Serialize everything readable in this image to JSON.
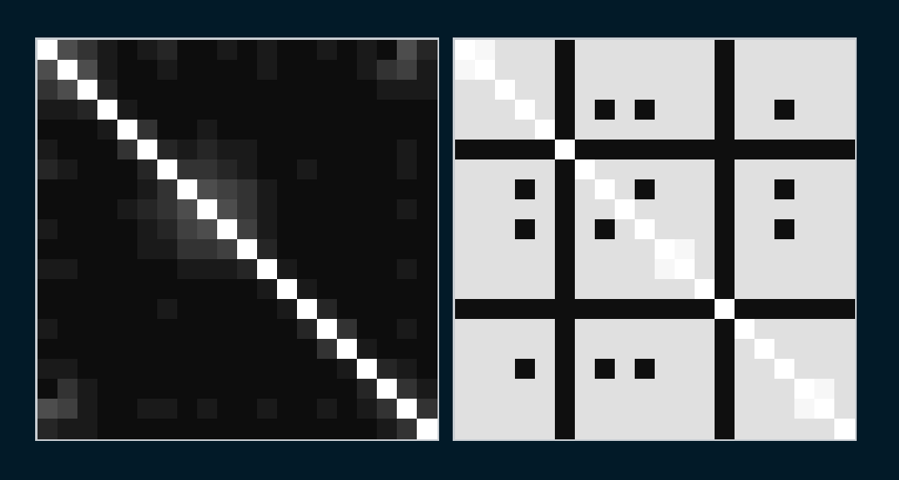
{
  "chart_data": [
    {
      "type": "heatmap",
      "tick_labels": false,
      "zlim": [
        0,
        1
      ],
      "cells": [
        [
          1,
          0.3,
          0.2,
          0.1,
          0.05,
          0.1,
          0.15,
          0.05,
          0.05,
          0.1,
          0.05,
          0.1,
          0.05,
          0.05,
          0.1,
          0.05,
          0.1,
          0.05,
          0.3,
          0.15
        ],
        [
          0.3,
          1,
          0.3,
          0.1,
          0.05,
          0.05,
          0.1,
          0.05,
          0.05,
          0.05,
          0.05,
          0.1,
          0.05,
          0.05,
          0.05,
          0.05,
          0.1,
          0.2,
          0.25,
          0.1
        ],
        [
          0.2,
          0.3,
          1,
          0.15,
          0.05,
          0.05,
          0.05,
          0.05,
          0.05,
          0.05,
          0.05,
          0.05,
          0.05,
          0.05,
          0.05,
          0.05,
          0.05,
          0.1,
          0.1,
          0.1
        ],
        [
          0.1,
          0.1,
          0.15,
          1,
          0.1,
          0.05,
          0.05,
          0.05,
          0.05,
          0.05,
          0.05,
          0.05,
          0.05,
          0.05,
          0.05,
          0.05,
          0.05,
          0.05,
          0.05,
          0.05
        ],
        [
          0.05,
          0.05,
          0.05,
          0.1,
          1,
          0.2,
          0.05,
          0.05,
          0.1,
          0.05,
          0.05,
          0.05,
          0.05,
          0.05,
          0.05,
          0.05,
          0.05,
          0.05,
          0.05,
          0.05
        ],
        [
          0.1,
          0.05,
          0.05,
          0.05,
          0.2,
          1,
          0.15,
          0.1,
          0.15,
          0.1,
          0.1,
          0.05,
          0.05,
          0.05,
          0.05,
          0.05,
          0.05,
          0.05,
          0.1,
          0.05
        ],
        [
          0.15,
          0.1,
          0.05,
          0.05,
          0.05,
          0.15,
          1,
          0.2,
          0.2,
          0.15,
          0.1,
          0.05,
          0.05,
          0.1,
          0.05,
          0.05,
          0.05,
          0.05,
          0.1,
          0.05
        ],
        [
          0.05,
          0.05,
          0.05,
          0.05,
          0.05,
          0.1,
          0.2,
          1,
          0.3,
          0.25,
          0.2,
          0.1,
          0.05,
          0.05,
          0.05,
          0.05,
          0.05,
          0.05,
          0.05,
          0.05
        ],
        [
          0.05,
          0.05,
          0.05,
          0.05,
          0.1,
          0.15,
          0.2,
          0.3,
          1,
          0.3,
          0.2,
          0.1,
          0.05,
          0.05,
          0.05,
          0.05,
          0.05,
          0.05,
          0.1,
          0.05
        ],
        [
          0.1,
          0.05,
          0.05,
          0.05,
          0.05,
          0.1,
          0.15,
          0.25,
          0.3,
          1,
          0.25,
          0.1,
          0.05,
          0.05,
          0.05,
          0.05,
          0.05,
          0.05,
          0.05,
          0.05
        ],
        [
          0.05,
          0.05,
          0.05,
          0.05,
          0.05,
          0.1,
          0.1,
          0.2,
          0.2,
          0.25,
          1,
          0.15,
          0.05,
          0.05,
          0.05,
          0.05,
          0.05,
          0.05,
          0.05,
          0.05
        ],
        [
          0.1,
          0.1,
          0.05,
          0.05,
          0.05,
          0.05,
          0.05,
          0.1,
          0.1,
          0.1,
          0.15,
          1,
          0.1,
          0.05,
          0.05,
          0.05,
          0.05,
          0.05,
          0.1,
          0.05
        ],
        [
          0.05,
          0.05,
          0.05,
          0.05,
          0.05,
          0.05,
          0.05,
          0.05,
          0.05,
          0.05,
          0.05,
          0.1,
          1,
          0.1,
          0.05,
          0.05,
          0.05,
          0.05,
          0.05,
          0.05
        ],
        [
          0.05,
          0.05,
          0.05,
          0.05,
          0.05,
          0.05,
          0.1,
          0.05,
          0.05,
          0.05,
          0.05,
          0.05,
          0.1,
          1,
          0.15,
          0.05,
          0.05,
          0.05,
          0.05,
          0.05
        ],
        [
          0.1,
          0.05,
          0.05,
          0.05,
          0.05,
          0.05,
          0.05,
          0.05,
          0.05,
          0.05,
          0.05,
          0.05,
          0.05,
          0.15,
          1,
          0.2,
          0.05,
          0.05,
          0.1,
          0.05
        ],
        [
          0.05,
          0.05,
          0.05,
          0.05,
          0.05,
          0.05,
          0.05,
          0.05,
          0.05,
          0.05,
          0.05,
          0.05,
          0.05,
          0.05,
          0.2,
          1,
          0.1,
          0.05,
          0.05,
          0.05
        ],
        [
          0.1,
          0.1,
          0.05,
          0.05,
          0.05,
          0.05,
          0.05,
          0.05,
          0.05,
          0.05,
          0.05,
          0.05,
          0.05,
          0.05,
          0.05,
          0.1,
          1,
          0.15,
          0.1,
          0.05
        ],
        [
          0.05,
          0.2,
          0.1,
          0.05,
          0.05,
          0.05,
          0.05,
          0.05,
          0.05,
          0.05,
          0.05,
          0.05,
          0.05,
          0.05,
          0.05,
          0.05,
          0.15,
          1,
          0.2,
          0.1
        ],
        [
          0.3,
          0.25,
          0.1,
          0.05,
          0.05,
          0.1,
          0.1,
          0.05,
          0.1,
          0.05,
          0.05,
          0.1,
          0.05,
          0.05,
          0.1,
          0.05,
          0.1,
          0.2,
          1,
          0.2
        ],
        [
          0.15,
          0.1,
          0.1,
          0.05,
          0.05,
          0.05,
          0.05,
          0.05,
          0.05,
          0.05,
          0.05,
          0.05,
          0.05,
          0.05,
          0.05,
          0.05,
          0.05,
          0.1,
          0.2,
          1
        ]
      ]
    },
    {
      "type": "heatmap",
      "tick_labels": false,
      "zlim": [
        0,
        1
      ],
      "cells": [
        [
          1,
          0.97,
          0.88,
          0.88,
          0.88,
          0.06,
          0.88,
          0.88,
          0.88,
          0.88,
          0.88,
          0.88,
          0.88,
          0.06,
          0.88,
          0.88,
          0.88,
          0.88,
          0.88,
          0.88
        ],
        [
          0.97,
          1,
          0.88,
          0.88,
          0.88,
          0.06,
          0.88,
          0.88,
          0.88,
          0.88,
          0.88,
          0.88,
          0.88,
          0.06,
          0.88,
          0.88,
          0.88,
          0.88,
          0.88,
          0.88
        ],
        [
          0.88,
          0.88,
          1,
          0.88,
          0.88,
          0.06,
          0.88,
          0.88,
          0.88,
          0.88,
          0.88,
          0.88,
          0.88,
          0.06,
          0.88,
          0.88,
          0.88,
          0.88,
          0.88,
          0.88
        ],
        [
          0.88,
          0.88,
          0.88,
          1,
          0.88,
          0.06,
          0.88,
          0.06,
          0.88,
          0.06,
          0.88,
          0.88,
          0.88,
          0.06,
          0.88,
          0.88,
          0.06,
          0.88,
          0.88,
          0.88
        ],
        [
          0.88,
          0.88,
          0.88,
          0.88,
          1,
          0.06,
          0.88,
          0.88,
          0.88,
          0.88,
          0.88,
          0.88,
          0.88,
          0.06,
          0.88,
          0.88,
          0.88,
          0.88,
          0.88,
          0.88
        ],
        [
          0.06,
          0.06,
          0.06,
          0.06,
          0.06,
          1,
          0.06,
          0.06,
          0.06,
          0.06,
          0.06,
          0.06,
          0.06,
          0.06,
          0.06,
          0.06,
          0.06,
          0.06,
          0.06,
          0.06
        ],
        [
          0.88,
          0.88,
          0.88,
          0.88,
          0.88,
          0.06,
          1,
          0.88,
          0.88,
          0.88,
          0.88,
          0.88,
          0.88,
          0.06,
          0.88,
          0.88,
          0.88,
          0.88,
          0.88,
          0.88
        ],
        [
          0.88,
          0.88,
          0.88,
          0.06,
          0.88,
          0.06,
          0.88,
          1,
          0.88,
          0.06,
          0.88,
          0.88,
          0.88,
          0.06,
          0.88,
          0.88,
          0.06,
          0.88,
          0.88,
          0.88
        ],
        [
          0.88,
          0.88,
          0.88,
          0.88,
          0.88,
          0.06,
          0.88,
          0.88,
          1,
          0.88,
          0.88,
          0.88,
          0.88,
          0.06,
          0.88,
          0.88,
          0.88,
          0.88,
          0.88,
          0.88
        ],
        [
          0.88,
          0.88,
          0.88,
          0.06,
          0.88,
          0.06,
          0.88,
          0.06,
          0.88,
          1,
          0.88,
          0.88,
          0.88,
          0.06,
          0.88,
          0.88,
          0.06,
          0.88,
          0.88,
          0.88
        ],
        [
          0.88,
          0.88,
          0.88,
          0.88,
          0.88,
          0.06,
          0.88,
          0.88,
          0.88,
          0.88,
          1,
          0.97,
          0.88,
          0.06,
          0.88,
          0.88,
          0.88,
          0.88,
          0.88,
          0.88
        ],
        [
          0.88,
          0.88,
          0.88,
          0.88,
          0.88,
          0.06,
          0.88,
          0.88,
          0.88,
          0.88,
          0.97,
          1,
          0.88,
          0.06,
          0.88,
          0.88,
          0.88,
          0.88,
          0.88,
          0.88
        ],
        [
          0.88,
          0.88,
          0.88,
          0.88,
          0.88,
          0.06,
          0.88,
          0.88,
          0.88,
          0.88,
          0.88,
          0.88,
          1,
          0.06,
          0.88,
          0.88,
          0.88,
          0.88,
          0.88,
          0.88
        ],
        [
          0.06,
          0.06,
          0.06,
          0.06,
          0.06,
          0.06,
          0.06,
          0.06,
          0.06,
          0.06,
          0.06,
          0.06,
          0.06,
          1,
          0.06,
          0.06,
          0.06,
          0.06,
          0.06,
          0.06
        ],
        [
          0.88,
          0.88,
          0.88,
          0.88,
          0.88,
          0.06,
          0.88,
          0.88,
          0.88,
          0.88,
          0.88,
          0.88,
          0.88,
          0.06,
          1,
          0.88,
          0.88,
          0.88,
          0.88,
          0.88
        ],
        [
          0.88,
          0.88,
          0.88,
          0.88,
          0.88,
          0.06,
          0.88,
          0.88,
          0.88,
          0.88,
          0.88,
          0.88,
          0.88,
          0.06,
          0.88,
          1,
          0.88,
          0.88,
          0.88,
          0.88
        ],
        [
          0.88,
          0.88,
          0.88,
          0.06,
          0.88,
          0.06,
          0.88,
          0.06,
          0.88,
          0.06,
          0.88,
          0.88,
          0.88,
          0.06,
          0.88,
          0.88,
          1,
          0.88,
          0.88,
          0.88
        ],
        [
          0.88,
          0.88,
          0.88,
          0.88,
          0.88,
          0.06,
          0.88,
          0.88,
          0.88,
          0.88,
          0.88,
          0.88,
          0.88,
          0.06,
          0.88,
          0.88,
          0.88,
          1,
          0.97,
          0.88
        ],
        [
          0.88,
          0.88,
          0.88,
          0.88,
          0.88,
          0.06,
          0.88,
          0.88,
          0.88,
          0.88,
          0.88,
          0.88,
          0.88,
          0.06,
          0.88,
          0.88,
          0.88,
          0.97,
          1,
          0.88
        ],
        [
          0.88,
          0.88,
          0.88,
          0.88,
          0.88,
          0.06,
          0.88,
          0.88,
          0.88,
          0.88,
          0.88,
          0.88,
          0.88,
          0.06,
          0.88,
          0.88,
          0.88,
          0.88,
          0.88,
          1
        ]
      ]
    }
  ]
}
